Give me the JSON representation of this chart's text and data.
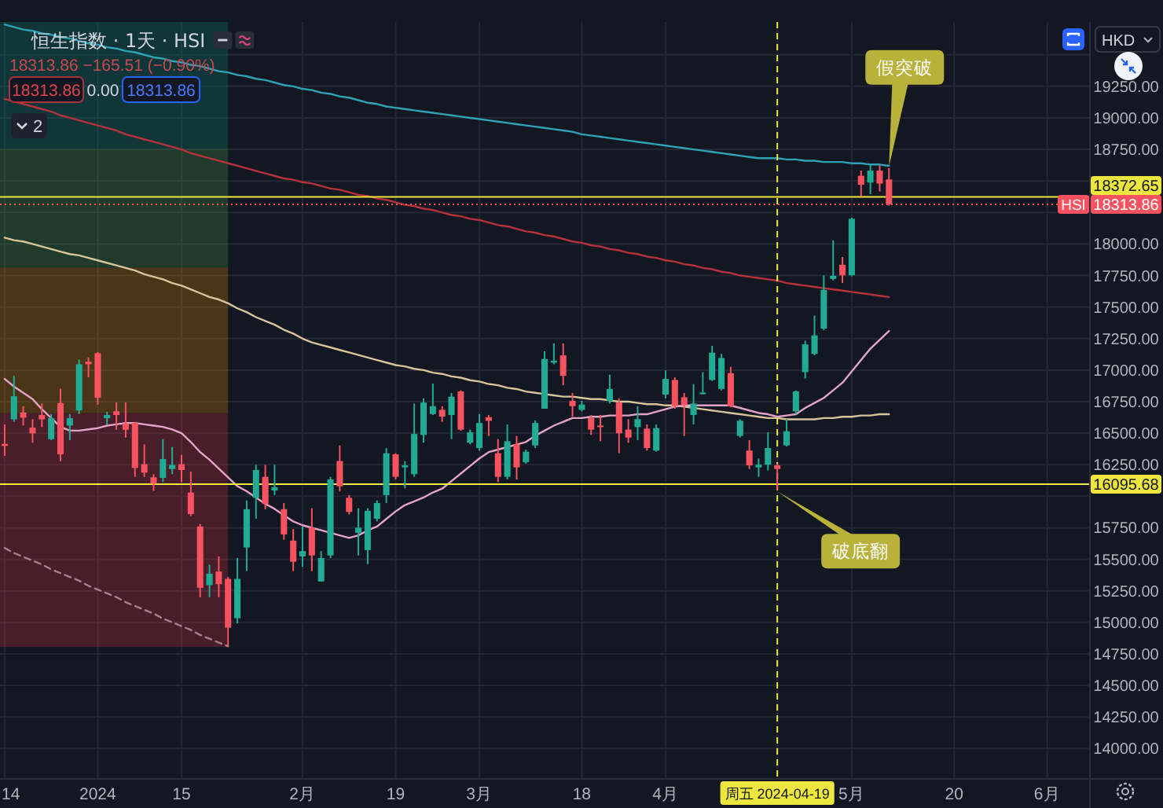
{
  "chart_data": {
    "type": "candlestick",
    "title": "恒生指数 · 1天 · HSI",
    "subtitle": "18313.86 −165.51 (−0.90%)",
    "categories": [
      "14",
      null,
      null,
      null,
      null,
      null,
      null,
      null,
      null,
      null,
      "2024",
      null,
      null,
      null,
      null,
      null,
      null,
      null,
      null,
      "15",
      null,
      null,
      null,
      null,
      null,
      null,
      null,
      null,
      null,
      null,
      null,
      null,
      "2月",
      null,
      null,
      null,
      null,
      null,
      null,
      null,
      null,
      null,
      "19",
      null,
      null,
      null,
      null,
      null,
      null,
      null,
      null,
      "3月",
      null,
      null,
      null,
      null,
      null,
      null,
      null,
      null,
      null,
      null,
      "18",
      null,
      null,
      null,
      null,
      null,
      null,
      null,
      null,
      "4月",
      null,
      null,
      null,
      null,
      null,
      null,
      null,
      null,
      null,
      null,
      null,
      "周五 2024-04-19",
      null,
      null,
      null,
      null,
      null,
      null,
      null,
      "5月",
      null,
      null,
      null,
      null,
      null,
      null,
      null,
      null,
      null,
      null,
      "20",
      null,
      null,
      null,
      null,
      null,
      null,
      null,
      null,
      null,
      "6月",
      null,
      null,
      null,
      null
    ],
    "ohlc": [
      [
        16415,
        16569,
        16320,
        16399
      ],
      [
        16610,
        16955,
        16590,
        16793
      ],
      [
        16664,
        16714,
        16561,
        16623
      ],
      [
        16544,
        16610,
        16424,
        16498
      ],
      [
        16644,
        16735,
        16548,
        16610
      ],
      [
        16453,
        16652,
        16444,
        16619
      ],
      [
        16739,
        16851,
        16278,
        16332
      ],
      [
        16561,
        16652,
        16444,
        16619
      ],
      [
        16681,
        17084,
        16652,
        17046
      ],
      [
        17067,
        17100,
        16943,
        17046
      ],
      [
        17134,
        17142,
        16727,
        16781
      ],
      [
        16619,
        16669,
        16569,
        16644
      ],
      [
        16673,
        16743,
        16527,
        16644
      ],
      [
        16577,
        16743,
        16465,
        16527
      ],
      [
        16581,
        16590,
        16154,
        16224
      ],
      [
        16254,
        16411,
        16154,
        16187
      ],
      [
        16150,
        16175,
        16042,
        16100
      ],
      [
        16146,
        16453,
        16112,
        16295
      ],
      [
        16216,
        16391,
        16175,
        16249
      ],
      [
        16254,
        16328,
        16112,
        16208
      ],
      [
        16029,
        16195,
        15843,
        15859
      ],
      [
        15760,
        15780,
        15199,
        15274
      ],
      [
        15295,
        15457,
        15199,
        15386
      ],
      [
        15403,
        15523,
        15199,
        15303
      ],
      [
        15345,
        15360,
        14805,
        14958
      ],
      [
        15033,
        15511,
        14992,
        15345
      ],
      [
        15594,
        15967,
        15407,
        15897
      ],
      [
        15988,
        16249,
        15822,
        16208
      ],
      [
        16154,
        16249,
        15897,
        15938
      ],
      [
        16046,
        16249,
        16009,
        16071
      ],
      [
        15897,
        15946,
        15656,
        15697
      ],
      [
        15648,
        15739,
        15407,
        15481
      ],
      [
        15523,
        15760,
        15440,
        15565
      ],
      [
        15751,
        15905,
        15407,
        15531
      ],
      [
        15324,
        15565,
        15324,
        15510
      ],
      [
        15531,
        16154,
        15510,
        16133
      ],
      [
        16279,
        16403,
        16038,
        16079
      ],
      [
        15988,
        16009,
        15855,
        15876
      ],
      [
        15710,
        15905,
        15531,
        15751
      ],
      [
        15573,
        15905,
        15461,
        15884
      ],
      [
        15822,
        15967,
        15801,
        15946
      ],
      [
        16009,
        16382,
        15946,
        16341
      ],
      [
        16332,
        16341,
        16133,
        16154
      ],
      [
        16229,
        16278,
        16063,
        16245
      ],
      [
        16175,
        16735,
        16154,
        16494
      ],
      [
        16486,
        16777,
        16424,
        16743
      ],
      [
        16652,
        16893,
        16644,
        16714
      ],
      [
        16685,
        16714,
        16590,
        16631
      ],
      [
        16644,
        16818,
        16453,
        16789
      ],
      [
        16831,
        16840,
        16520,
        16528
      ],
      [
        16424,
        16528,
        16412,
        16507
      ],
      [
        16382,
        16652,
        16361,
        16581
      ],
      [
        16627,
        16644,
        16478,
        16598
      ],
      [
        16341,
        16453,
        16113,
        16154
      ],
      [
        16154,
        16569,
        16133,
        16436
      ],
      [
        16411,
        16478,
        16133,
        16229
      ],
      [
        16270,
        16370,
        16258,
        16353
      ],
      [
        16403,
        16602,
        16382,
        16581
      ],
      [
        16694,
        17150,
        16694,
        17088
      ],
      [
        17059,
        17212,
        17046,
        17075
      ],
      [
        17117,
        17212,
        16880,
        16955
      ],
      [
        16756,
        16818,
        16631,
        16714
      ],
      [
        16685,
        16756,
        16673,
        16727
      ],
      [
        16619,
        16644,
        16486,
        16528
      ],
      [
        16561,
        16644,
        16436,
        16548
      ],
      [
        16756,
        16963,
        16735,
        16851
      ],
      [
        16743,
        16777,
        16341,
        16499
      ],
      [
        16528,
        16611,
        16424,
        16465
      ],
      [
        16548,
        16714,
        16445,
        16611
      ],
      [
        16536,
        16569,
        16362,
        16382
      ],
      [
        16362,
        16569,
        16353,
        16540
      ],
      [
        16806,
        16997,
        16777,
        16930
      ],
      [
        16922,
        16943,
        16694,
        16714
      ],
      [
        16785,
        16818,
        16478,
        16723
      ],
      [
        16644,
        16889,
        16569,
        16735
      ],
      [
        16814,
        16984,
        16806,
        16822
      ],
      [
        16922,
        17192,
        16914,
        17138
      ],
      [
        16851,
        17129,
        16839,
        17096
      ],
      [
        16976,
        17026,
        16706,
        16714
      ],
      [
        16478,
        16611,
        16466,
        16598
      ],
      [
        16362,
        16445,
        16216,
        16245
      ],
      [
        16229,
        16299,
        16154,
        16250
      ],
      [
        16250,
        16507,
        16204,
        16382
      ],
      [
        16245,
        16258,
        16050,
        16216
      ],
      [
        16403,
        16611,
        16395,
        16515
      ],
      [
        16673,
        16839,
        16652,
        16831
      ],
      [
        16984,
        17233,
        16934,
        17204
      ],
      [
        17129,
        17432,
        17117,
        17275
      ],
      [
        17329,
        17752,
        17316,
        17636
      ],
      [
        17723,
        18030,
        17711,
        17748
      ],
      [
        17835,
        17897,
        17690,
        17752
      ],
      [
        17752,
        18208,
        17744,
        18200
      ],
      [
        18541,
        18582,
        18375,
        18470
      ],
      [
        18487,
        18624,
        18395,
        18582
      ],
      [
        18582,
        18624,
        18416,
        18479
      ],
      [
        18512,
        18603,
        18304,
        18313.86
      ],
      null,
      null,
      null,
      null,
      null,
      null,
      null,
      null,
      null,
      null,
      null,
      null,
      null,
      null,
      null,
      null,
      null,
      null,
      null,
      null,
      null
    ],
    "colors": [
      "#f7525f",
      "#22ab94",
      "#f7525f",
      "#f7525f",
      "#f7525f",
      "#22ab94",
      "#f7525f",
      "#22ab94",
      "#22ab94",
      "#f7525f",
      "#f7525f",
      "#22ab94",
      "#f7525f",
      "#f7525f",
      "#f7525f",
      "#f7525f",
      "#f7525f",
      "#22ab94",
      "#22ab94",
      "#f7525f",
      "#f7525f",
      "#f7525f",
      "#22ab94",
      "#f7525f",
      "#f7525f",
      "#22ab94",
      "#22ab94",
      "#22ab94",
      "#f7525f",
      "#22ab94",
      "#f7525f",
      "#f7525f",
      "#22ab94",
      "#f7525f",
      "#22ab94",
      "#22ab94",
      "#f7525f",
      "#f7525f",
      "#22ab94",
      "#22ab94",
      "#22ab94",
      "#22ab94",
      "#f7525f",
      "#22ab94",
      "#22ab94",
      "#22ab94",
      "#22ab94",
      "#f7525f",
      "#22ab94",
      "#f7525f",
      "#22ab94",
      "#22ab94",
      "#f7525f",
      "#f7525f",
      "#22ab94",
      "#f7525f",
      "#22ab94",
      "#22ab94",
      "#22ab94",
      "#22ab94",
      "#f7525f",
      "#f7525f",
      "#22ab94",
      "#f7525f",
      "#f7525f",
      "#22ab94",
      "#f7525f",
      "#f7525f",
      "#22ab94",
      "#f7525f",
      "#22ab94",
      "#22ab94",
      "#f7525f",
      "#f7525f",
      "#22ab94",
      "#22ab94",
      "#22ab94",
      "#22ab94",
      "#f7525f",
      "#22ab94",
      "#f7525f",
      "#22ab94",
      "#22ab94",
      "#f7525f",
      "#22ab94",
      "#22ab94",
      "#22ab94",
      "#22ab94",
      "#22ab94",
      "#22ab94",
      "#f7525f",
      "#22ab94",
      "#f7525f",
      "#22ab94",
      "#f7525f",
      "#f7525f",
      null,
      null,
      null,
      null,
      null,
      null,
      null,
      null,
      null,
      null,
      null,
      null,
      null,
      null,
      null,
      null,
      null,
      null,
      null,
      null,
      null
    ],
    "series": [
      {
        "type": "line",
        "color": "#b07a8c",
        "line_style": "dashed",
        "values": [
          15590,
          15550,
          15520,
          15490,
          15460,
          15420,
          15390,
          15360,
          15330,
          15290,
          15260,
          15230,
          15200,
          15160,
          15130,
          15100,
          15070,
          15030,
          15000,
          14970,
          14940,
          14900,
          14870,
          14840,
          14810,
          null,
          null,
          null,
          null,
          null,
          null,
          null,
          null,
          null,
          null,
          null,
          null,
          null,
          null,
          null,
          null,
          null,
          null,
          null,
          null,
          null,
          null,
          null,
          null,
          null,
          null,
          null,
          null,
          null,
          null,
          null,
          null,
          null,
          null,
          null,
          null,
          null,
          null,
          null,
          null,
          null,
          null,
          null,
          null,
          null,
          null,
          null,
          null,
          null,
          null,
          null,
          null,
          null,
          null,
          null,
          null,
          null,
          null,
          null,
          null,
          null,
          null,
          null,
          null,
          null,
          null,
          null,
          null,
          null,
          null,
          null,
          null,
          null,
          null,
          null,
          null,
          null,
          null,
          null,
          null,
          null,
          null,
          null,
          null,
          null,
          null,
          null,
          null,
          null,
          null,
          null,
          null
        ]
      },
      {
        "type": "line",
        "color": "#2fa2b5",
        "values": [
          19740,
          19720,
          19700,
          19690,
          19670,
          19660,
          19640,
          19630,
          19610,
          19590,
          19580,
          19560,
          19550,
          19530,
          19520,
          19500,
          19480,
          19470,
          19450,
          19440,
          19420,
          19410,
          19390,
          19370,
          19360,
          19340,
          19330,
          19310,
          19300,
          19280,
          19260,
          19250,
          19230,
          19220,
          19200,
          19190,
          19170,
          19160,
          19140,
          19120,
          19110,
          19090,
          19080,
          19070,
          19060,
          19050,
          19040,
          19030,
          19020,
          19010,
          19000,
          18990,
          18980,
          18970,
          18960,
          18950,
          18940,
          18930,
          18920,
          18910,
          18900,
          18890,
          18870,
          18860,
          18850,
          18840,
          18830,
          18820,
          18810,
          18800,
          18790,
          18780,
          18770,
          18760,
          18750,
          18740,
          18730,
          18720,
          18710,
          18700,
          18690,
          18680,
          18680,
          18680,
          18670,
          18670,
          18660,
          18660,
          18650,
          18650,
          18650,
          18640,
          18640,
          18630,
          18630,
          18620,
          null,
          null,
          null,
          null,
          null,
          null,
          null,
          null,
          null,
          null,
          null,
          null,
          null,
          null,
          null,
          null,
          null,
          null,
          null,
          null,
          null
        ]
      },
      {
        "type": "line",
        "color": "#b5323c",
        "values": [
          19150,
          19130,
          19110,
          19090,
          19070,
          19050,
          19020,
          19000,
          18980,
          18960,
          18940,
          18920,
          18900,
          18870,
          18850,
          18830,
          18810,
          18790,
          18770,
          18750,
          18720,
          18700,
          18680,
          18660,
          18640,
          18620,
          18600,
          18580,
          18560,
          18540,
          18520,
          18510,
          18490,
          18480,
          18460,
          18440,
          18430,
          18410,
          18390,
          18380,
          18360,
          18350,
          18330,
          18310,
          18300,
          18280,
          18270,
          18250,
          18230,
          18220,
          18200,
          18190,
          18170,
          18150,
          18140,
          18120,
          18100,
          18090,
          18070,
          18060,
          18040,
          18020,
          18010,
          17990,
          17980,
          17960,
          17950,
          17930,
          17920,
          17900,
          17890,
          17870,
          17860,
          17840,
          17830,
          17810,
          17800,
          17780,
          17770,
          17750,
          17740,
          17730,
          17720,
          17710,
          17690,
          17680,
          17670,
          17660,
          17650,
          17640,
          17630,
          17620,
          17610,
          17600,
          17590,
          17580,
          null,
          null,
          null,
          null,
          null,
          null,
          null,
          null,
          null,
          null,
          null,
          null,
          null,
          null,
          null,
          null,
          null,
          null,
          null,
          null,
          null
        ]
      },
      {
        "type": "line",
        "color": "#d8c49a",
        "values": [
          18050,
          18030,
          18020,
          18000,
          17980,
          17960,
          17940,
          17920,
          17910,
          17890,
          17870,
          17850,
          17830,
          17810,
          17790,
          17760,
          17740,
          17720,
          17690,
          17670,
          17640,
          17610,
          17580,
          17560,
          17530,
          17490,
          17460,
          17420,
          17390,
          17360,
          17320,
          17290,
          17250,
          17220,
          17200,
          17180,
          17160,
          17140,
          17120,
          17100,
          17080,
          17060,
          17040,
          17030,
          17010,
          17000,
          16980,
          16970,
          16950,
          16940,
          16920,
          16910,
          16890,
          16880,
          16860,
          16850,
          16830,
          16820,
          16810,
          16800,
          16790,
          16790,
          16780,
          16770,
          16770,
          16760,
          16750,
          16750,
          16740,
          16730,
          16730,
          16720,
          16720,
          16710,
          16700,
          16690,
          16680,
          16670,
          16660,
          16650,
          16640,
          16630,
          16620,
          16620,
          16610,
          16610,
          16610,
          16610,
          16620,
          16620,
          16630,
          16630,
          16640,
          16640,
          16650,
          16650,
          null,
          null,
          null,
          null,
          null,
          null,
          null,
          null,
          null,
          null,
          null,
          null,
          null,
          null,
          null,
          null,
          null,
          null,
          null,
          null,
          null
        ]
      },
      {
        "type": "line",
        "color": "#e2a3c7",
        "values": [
          16930,
          16870,
          16820,
          16770,
          16690,
          16620,
          16550,
          16520,
          16520,
          16530,
          16540,
          16560,
          16570,
          16580,
          16580,
          16570,
          16560,
          16550,
          16530,
          16500,
          16430,
          16350,
          16290,
          16220,
          16150,
          16080,
          16040,
          15990,
          15940,
          15900,
          15850,
          15800,
          15770,
          15750,
          15730,
          15710,
          15690,
          15670,
          15690,
          15730,
          15760,
          15820,
          15880,
          15930,
          15960,
          15990,
          16030,
          16060,
          16120,
          16180,
          16240,
          16300,
          16350,
          16370,
          16390,
          16410,
          16430,
          16480,
          16520,
          16560,
          16590,
          16620,
          16620,
          16630,
          16630,
          16640,
          16640,
          16640,
          16650,
          16650,
          16670,
          16690,
          16710,
          16720,
          16720,
          16720,
          16720,
          16720,
          16720,
          16700,
          16680,
          16660,
          16650,
          16630,
          16640,
          16650,
          16700,
          16740,
          16780,
          16840,
          16900,
          16990,
          17080,
          17170,
          17240,
          17310,
          null,
          null,
          null,
          null,
          null,
          null,
          null,
          null,
          null,
          null,
          null,
          null,
          null,
          null,
          null,
          null,
          null,
          null,
          null,
          null,
          null
        ]
      }
    ],
    "ylim": [
      13765,
      19760
    ],
    "yticks": [
      {
        "value": 14000,
        "label": "14000.00"
      },
      {
        "value": 14250,
        "label": "14250.00"
      },
      {
        "value": 14500,
        "label": "14500.00"
      },
      {
        "value": 14750,
        "label": "14750.00"
      },
      {
        "value": 15000,
        "label": "15000.00"
      },
      {
        "value": 15250,
        "label": "15250.00"
      },
      {
        "value": 15500,
        "label": "15500.00"
      },
      {
        "value": 15750,
        "label": "15750.00"
      },
      {
        "value": 16000,
        "label": null
      },
      {
        "value": 16250,
        "label": "16250.00"
      },
      {
        "value": 16500,
        "label": "16500.00"
      },
      {
        "value": 16750,
        "label": "16750.00"
      },
      {
        "value": 17000,
        "label": "17000.00"
      },
      {
        "value": 17250,
        "label": "17250.00"
      },
      {
        "value": 17500,
        "label": "17500.00"
      },
      {
        "value": 17750,
        "label": "17750.00"
      },
      {
        "value": 18000,
        "label": "18000.00"
      },
      {
        "value": 18250,
        "label": null
      },
      {
        "value": 18500,
        "label": null
      },
      {
        "value": 18750,
        "label": "18750.00"
      },
      {
        "value": 19000,
        "label": "19000.00"
      },
      {
        "value": 19250,
        "label": "19250.00"
      },
      {
        "value": 19500,
        "label": null
      }
    ],
    "grid": true,
    "bands": [
      {
        "axis": "y",
        "from": 14805,
        "to": 16660,
        "color": "#f23645"
      },
      {
        "axis": "y",
        "from": 16660,
        "to": 17814,
        "color": "#ff9800"
      },
      {
        "axis": "y",
        "from": 17814,
        "to": 18759,
        "color": "#4caf50"
      },
      {
        "axis": "y",
        "from": 18759,
        "to": 19760,
        "color": "#089981"
      }
    ],
    "ref_lines": [
      {
        "axis": "y",
        "value": 18372.65,
        "label": "18372.65",
        "color": "#ede63f"
      },
      {
        "axis": "y",
        "value": 18313.86,
        "label": "18313.86",
        "color": "#f7525f",
        "line_style": "dotted"
      },
      {
        "axis": "y",
        "value": 16095.68,
        "label": "16095.68",
        "color": "#ede63f"
      },
      {
        "axis": "x",
        "value": "周五 2024-04-19",
        "color": "#ede63f",
        "line_style": "dashed"
      }
    ],
    "annotations": [
      {
        "text": "HSI",
        "y": 18313.86
      },
      "假突破",
      "破底翻",
      "18313.86",
      "0.00",
      "18313.86",
      "2",
      "HKD"
    ]
  }
}
